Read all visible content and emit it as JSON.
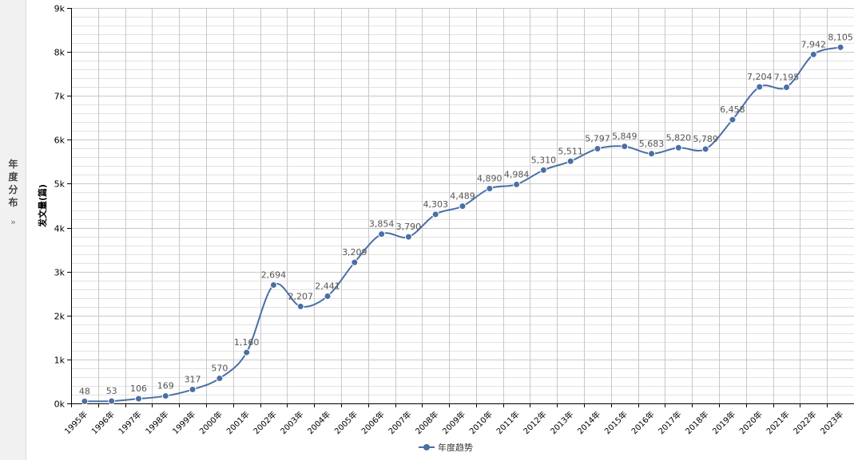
{
  "side_panel": {
    "chars": [
      "年",
      "度",
      "分",
      "布"
    ],
    "chevron": "»"
  },
  "colors": {
    "line": "#4a6fa5",
    "grid": "#c8c8c8",
    "grid_minor": "#e2e2e2",
    "axis": "#000000",
    "label": "#555555"
  },
  "chart_data": {
    "type": "line",
    "ylabel": "发文量(篇)",
    "categories": [
      "1995年",
      "1996年",
      "1997年",
      "1998年",
      "1999年",
      "2000年",
      "2001年",
      "2002年",
      "2003年",
      "2004年",
      "2005年",
      "2006年",
      "2007年",
      "2008年",
      "2009年",
      "2010年",
      "2011年",
      "2012年",
      "2013年",
      "2014年",
      "2015年",
      "2016年",
      "2017年",
      "2018年",
      "2019年",
      "2020年",
      "2021年",
      "2022年",
      "2023年"
    ],
    "series": [
      {
        "name": "年度趋势",
        "values": [
          48,
          53,
          106,
          169,
          317,
          570,
          1160,
          2694,
          2207,
          2441,
          3209,
          3854,
          3790,
          4303,
          4489,
          4890,
          4984,
          5310,
          5511,
          5797,
          5849,
          5683,
          5820,
          5789,
          6458,
          7204,
          7195,
          7942,
          8105
        ],
        "labels": [
          "48",
          "53",
          "106",
          "169",
          "317",
          "570",
          "1,160",
          "2,694",
          "2,207",
          "2,441",
          "3,209",
          "3,854",
          "3,790",
          "4,303",
          "4,489",
          "4,890",
          "4,984",
          "5,310",
          "5,511",
          "5,797",
          "5,849",
          "5,683",
          "5,820",
          "5,789",
          "6,458",
          "7,204",
          "7,195",
          "7,942",
          "8,105"
        ]
      }
    ],
    "ylim": [
      0,
      9000
    ],
    "yticks": [
      0,
      1000,
      2000,
      3000,
      4000,
      5000,
      6000,
      7000,
      8000,
      9000
    ],
    "ytick_labels": [
      "0k",
      "1k",
      "2k",
      "3k",
      "4k",
      "5k",
      "6k",
      "7k",
      "8k",
      "9k"
    ],
    "grid": true,
    "smooth": true,
    "legend_position": "bottom-center"
  }
}
